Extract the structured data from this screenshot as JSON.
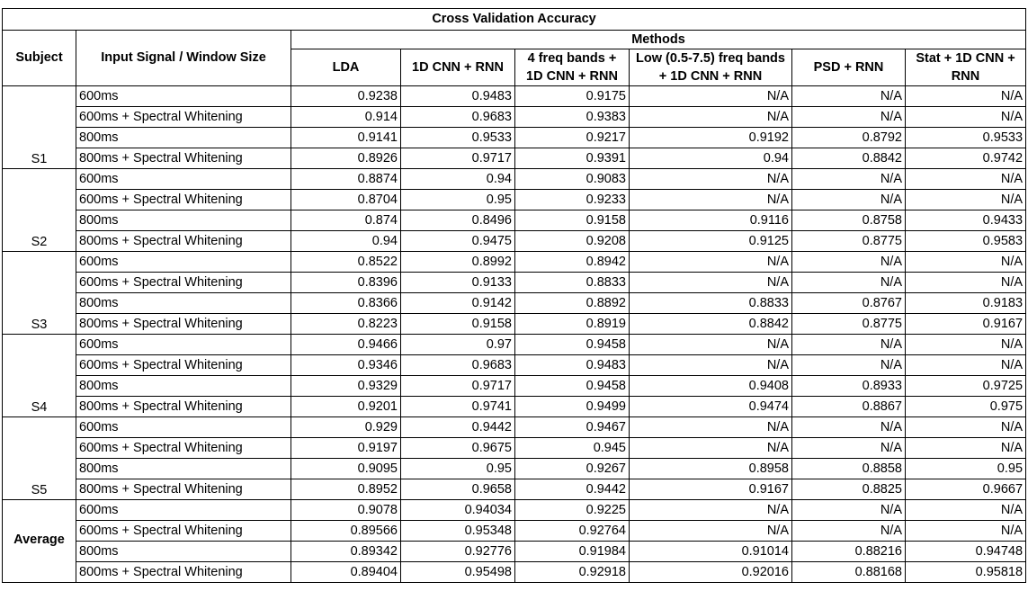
{
  "title": "Cross Validation Accuracy",
  "headers": {
    "subject": "Subject",
    "input": "Input Signal / Window Size",
    "methods": "Methods",
    "columns": [
      "LDA",
      "1D CNN + RNN",
      "4 freq bands + 1D CNN + RNN",
      "Low (0.5-7.5) freq bands + 1D CNN + RNN",
      "PSD + RNN",
      "Stat + 1D CNN + RNN"
    ]
  },
  "rows": [
    {
      "subject": "S1",
      "signal": "600ms",
      "values": [
        "0.9238",
        "0.9483",
        "0.9175",
        "N/A",
        "N/A",
        "N/A"
      ]
    },
    {
      "subject": "S1",
      "signal": "600ms + Spectral Whitening",
      "values": [
        "0.914",
        "0.9683",
        "0.9383",
        "N/A",
        "N/A",
        "N/A"
      ]
    },
    {
      "subject": "S1",
      "signal": "800ms",
      "values": [
        "0.9141",
        "0.9533",
        "0.9217",
        "0.9192",
        "0.8792",
        "0.9533"
      ]
    },
    {
      "subject": "S1",
      "signal": "800ms + Spectral Whitening",
      "values": [
        "0.8926",
        "0.9717",
        "0.9391",
        "0.94",
        "0.8842",
        "0.9742"
      ]
    },
    {
      "subject": "S2",
      "signal": "600ms",
      "values": [
        "0.8874",
        "0.94",
        "0.9083",
        "N/A",
        "N/A",
        "N/A"
      ]
    },
    {
      "subject": "S2",
      "signal": "600ms + Spectral Whitening",
      "values": [
        "0.8704",
        "0.95",
        "0.9233",
        "N/A",
        "N/A",
        "N/A"
      ]
    },
    {
      "subject": "S2",
      "signal": "800ms",
      "values": [
        "0.874",
        "0.8496",
        "0.9158",
        "0.9116",
        "0.8758",
        "0.9433"
      ]
    },
    {
      "subject": "S2",
      "signal": "800ms + Spectral Whitening",
      "values": [
        "0.94",
        "0.9475",
        "0.9208",
        "0.9125",
        "0.8775",
        "0.9583"
      ]
    },
    {
      "subject": "S3",
      "signal": "600ms",
      "values": [
        "0.8522",
        "0.8992",
        "0.8942",
        "N/A",
        "N/A",
        "N/A"
      ]
    },
    {
      "subject": "S3",
      "signal": "600ms + Spectral Whitening",
      "values": [
        "0.8396",
        "0.9133",
        "0.8833",
        "N/A",
        "N/A",
        "N/A"
      ]
    },
    {
      "subject": "S3",
      "signal": "800ms",
      "values": [
        "0.8366",
        "0.9142",
        "0.8892",
        "0.8833",
        "0.8767",
        "0.9183"
      ]
    },
    {
      "subject": "S3",
      "signal": "800ms + Spectral Whitening",
      "values": [
        "0.8223",
        "0.9158",
        "0.8919",
        "0.8842",
        "0.8775",
        "0.9167"
      ]
    },
    {
      "subject": "S4",
      "signal": "600ms",
      "values": [
        "0.9466",
        "0.97",
        "0.9458",
        "N/A",
        "N/A",
        "N/A"
      ]
    },
    {
      "subject": "S4",
      "signal": "600ms + Spectral Whitening",
      "values": [
        "0.9346",
        "0.9683",
        "0.9483",
        "N/A",
        "N/A",
        "N/A"
      ]
    },
    {
      "subject": "S4",
      "signal": "800ms",
      "values": [
        "0.9329",
        "0.9717",
        "0.9458",
        "0.9408",
        "0.8933",
        "0.9725"
      ]
    },
    {
      "subject": "S4",
      "signal": "800ms + Spectral Whitening",
      "values": [
        "0.9201",
        "0.9741",
        "0.9499",
        "0.9474",
        "0.8867",
        "0.975"
      ]
    },
    {
      "subject": "S5",
      "signal": "600ms",
      "values": [
        "0.929",
        "0.9442",
        "0.9467",
        "N/A",
        "N/A",
        "N/A"
      ]
    },
    {
      "subject": "S5",
      "signal": "600ms + Spectral Whitening",
      "values": [
        "0.9197",
        "0.9675",
        "0.945",
        "N/A",
        "N/A",
        "N/A"
      ]
    },
    {
      "subject": "S5",
      "signal": "800ms",
      "values": [
        "0.9095",
        "0.95",
        "0.9267",
        "0.8958",
        "0.8858",
        "0.95"
      ]
    },
    {
      "subject": "S5",
      "signal": "800ms + Spectral Whitening",
      "values": [
        "0.8952",
        "0.9658",
        "0.9442",
        "0.9167",
        "0.8825",
        "0.9667"
      ]
    },
    {
      "subject": "Average",
      "signal": "600ms",
      "values": [
        "0.9078",
        "0.94034",
        "0.9225",
        "N/A",
        "N/A",
        "N/A"
      ]
    },
    {
      "subject": "Average",
      "signal": "600ms + Spectral Whitening",
      "values": [
        "0.89566",
        "0.95348",
        "0.92764",
        "N/A",
        "N/A",
        "N/A"
      ]
    },
    {
      "subject": "Average",
      "signal": "800ms",
      "values": [
        "0.89342",
        "0.92776",
        "0.91984",
        "0.91014",
        "0.88216",
        "0.94748"
      ]
    },
    {
      "subject": "Average",
      "signal": "800ms + Spectral Whitening",
      "values": [
        "0.89404",
        "0.95498",
        "0.92918",
        "0.92016",
        "0.88168",
        "0.95818"
      ]
    }
  ]
}
